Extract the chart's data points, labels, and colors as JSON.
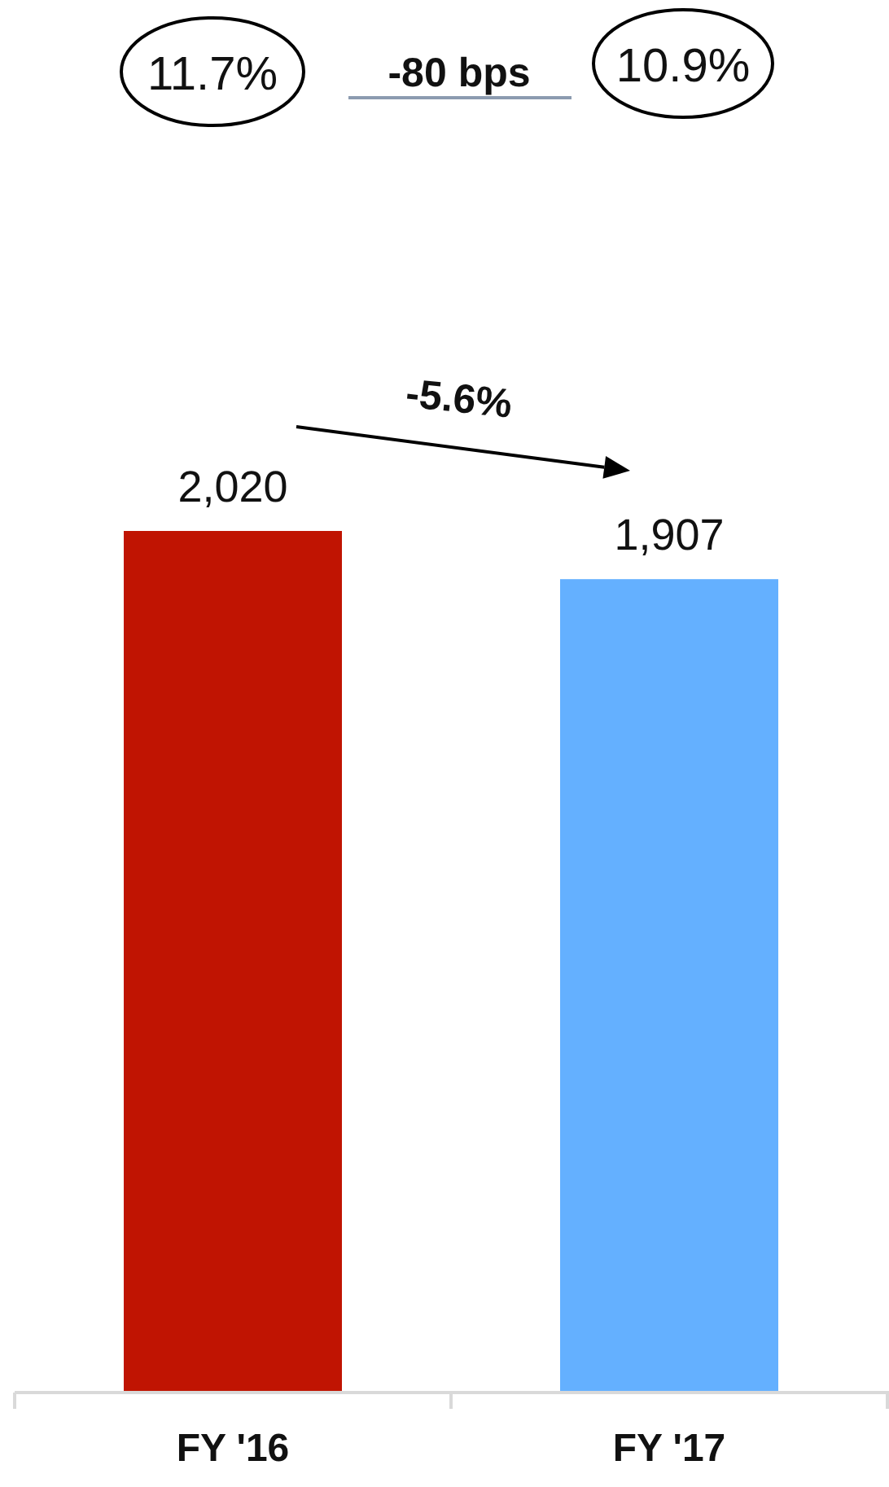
{
  "chart_data": {
    "type": "bar",
    "categories": [
      "FY '16",
      "FY '17"
    ],
    "values": [
      2020,
      1907
    ],
    "value_labels": [
      "2,020",
      "1,907"
    ],
    "colors": [
      "#c01402",
      "#64b0ff"
    ],
    "annotations": [
      "11.7%",
      "-80 bps",
      "10.9%",
      "-5.6%"
    ]
  }
}
